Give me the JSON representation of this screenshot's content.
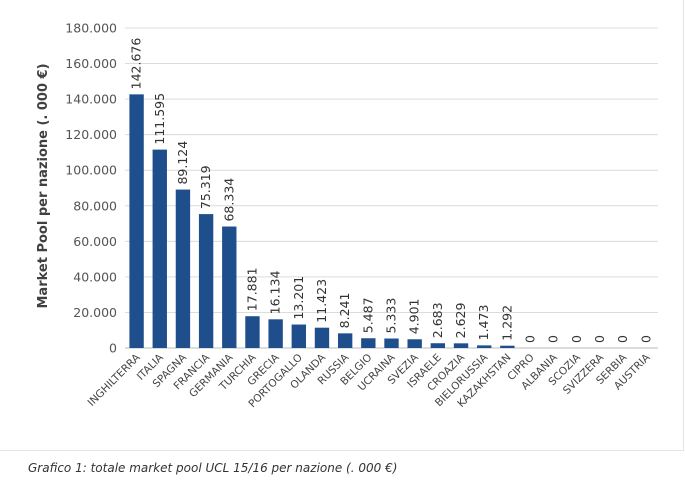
{
  "chart_data": {
    "type": "bar",
    "ylabel": "Market Pool per nazione (. 000 €)",
    "ylim": [
      0,
      180000
    ],
    "ytick_step": 20000,
    "yticks": [
      "0",
      "20.000",
      "40.000",
      "60.000",
      "80.000",
      "100.000",
      "120.000",
      "140.000",
      "160.000",
      "180.000"
    ],
    "grid": true,
    "bar_color": "#1f4e8c",
    "categories": [
      "INGHILTERRA",
      "ITALIA",
      "SPAGNA",
      "FRANCIA",
      "GERMANIA",
      "TURCHIA",
      "GRECIA",
      "PORTOGALLO",
      "OLANDA",
      "RUSSIA",
      "BELGIO",
      "UCRAINA",
      "SVEZIA",
      "ISRAELE",
      "CROAZIA",
      "BIELORUSSIA",
      "KAZAKHSTAN",
      "CIPRO",
      "ALBANIA",
      "SCOZIA",
      "SVIZZERA",
      "SERBIA",
      "AUSTRIA"
    ],
    "values": [
      142676,
      111595,
      89124,
      75319,
      68334,
      17881,
      16134,
      13201,
      11423,
      8241,
      5487,
      5333,
      4901,
      2683,
      2629,
      1473,
      1292,
      0,
      0,
      0,
      0,
      0,
      0
    ],
    "data_labels": [
      "142.676",
      "111.595",
      "89.124",
      "75.319",
      "68.334",
      "17.881",
      "16.134",
      "13.201",
      "11.423",
      "8.241",
      "5.487",
      "5.333",
      "4.901",
      "2.683",
      "2.629",
      "1.473",
      "1.292",
      "0",
      "0",
      "0",
      "0",
      "0",
      "0"
    ]
  },
  "caption": "Grafico 1: totale market pool UCL 15/16 per nazione (. 000 €)"
}
